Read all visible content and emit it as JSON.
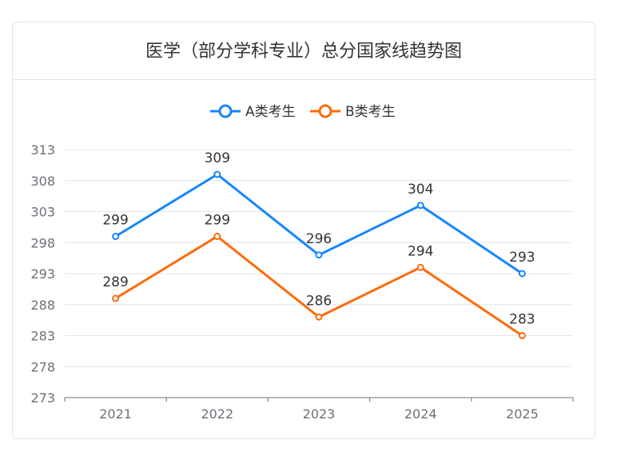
{
  "chart_data": {
    "type": "line",
    "title": "医学（部分学科专业）总分国家线趋势图",
    "categories": [
      "2021",
      "2022",
      "2023",
      "2024",
      "2025"
    ],
    "series": [
      {
        "name": "A类考生",
        "values": [
          299,
          309,
          296,
          304,
          293
        ],
        "color": "#1786ff"
      },
      {
        "name": "B类考生",
        "values": [
          289,
          299,
          286,
          294,
          283
        ],
        "color": "#ff6a0a"
      }
    ],
    "ylim": [
      273,
      313
    ],
    "yticks": [
      273,
      278,
      283,
      288,
      293,
      298,
      303,
      308,
      313
    ],
    "grid": true,
    "legend": "top-center",
    "xlabel": "",
    "ylabel": ""
  }
}
